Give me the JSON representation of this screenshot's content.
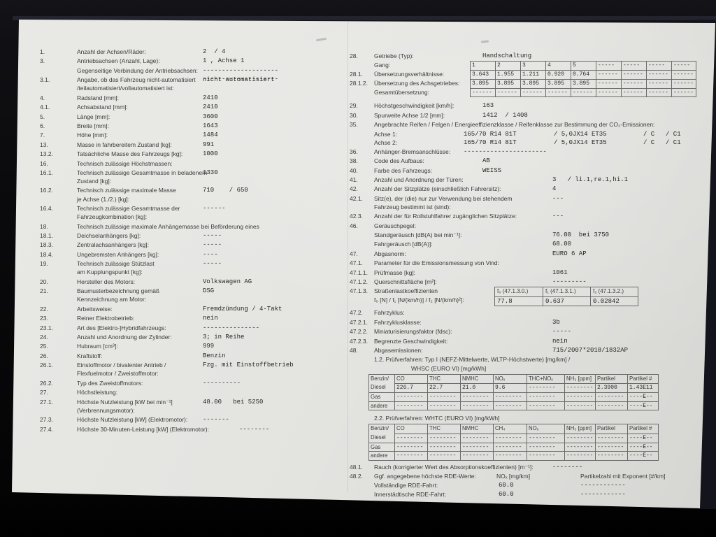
{
  "photo": {
    "background_color": "#0a0a0c",
    "paper_color": "#e4e4e1",
    "text_color": "#3a3a3a"
  },
  "doc": {
    "left_rows": [
      {
        "num": "1.",
        "label": "Anzahl der Achsen/Räder:",
        "value": "2  / 4"
      },
      {
        "num": "3.",
        "label": "Antriebsachsen (Anzahl, Lage):",
        "value": "1 , Achse 1"
      },
      {
        "num": "",
        "label": "Gegenseitige Verbindung der Antriebsachsen:",
        "value": "--------------------\n--------------------"
      },
      {
        "num": "3.1.",
        "label": "Angabe, ob das Fahrzeug nicht-automatisiert\n/teilautomatisiert/vollautomatisiert ist:",
        "value": "nicht automatisiert"
      },
      {
        "num": "4.",
        "label": "Radstand [mm]:",
        "value": "2410"
      },
      {
        "num": "4.1.",
        "label": "Achsabstand [mm]:",
        "value": "2410"
      },
      {
        "num": "5.",
        "label": "Länge [mm]:",
        "value": "3600"
      },
      {
        "num": "6.",
        "label": "Breite [mm]:",
        "value": "1643"
      },
      {
        "num": "7.",
        "label": "Höhe [mm]:",
        "value": "1484"
      },
      {
        "num": "13.",
        "label": "Masse in fahrbereitem Zustand [kg]:",
        "value": "991"
      },
      {
        "num": "13.2.",
        "label": "Tatsächliche Masse des Fahrzeugs [kg]:",
        "value": "1000"
      },
      {
        "num": "16.",
        "label": "Technisch zulässige Höchstmassen:",
        "value": ""
      },
      {
        "num": "16.1.",
        "label": "Technisch zulässige Gesamtmasse in beladenem\nZustand [kg]:",
        "value": "1330"
      },
      {
        "num": "16.2.",
        "label": "Technisch zulässige maximale Masse\nje Achse (1./2.) [kg]:",
        "value": "710    / 650"
      },
      {
        "num": "16.4.",
        "label": "Technisch zulässige Gesamtmasse der\nFahrzeugkombination [kg]:",
        "value": "------"
      },
      {
        "num": "18.",
        "label": "Technisch zulässige maximale Anhängemasse bei Beförderung eines",
        "value": "",
        "wide": true
      },
      {
        "num": "18.1.",
        "label": "Deichselanhängers [kg]:",
        "value": "-----"
      },
      {
        "num": "18.3.",
        "label": "Zentralachsanhängers [kg]:",
        "value": "-----"
      },
      {
        "num": "18.4.",
        "label": "Ungebremsten Anhängers [kg]:",
        "value": "----"
      },
      {
        "num": "19.",
        "label": "Technisch zulässige Stützlast\nam Kupplungspunkt [kg]:",
        "value": "-----"
      },
      {
        "num": "20.",
        "label": "Hersteller des Motors:",
        "value": "Volkswagen AG"
      },
      {
        "num": "21.",
        "label": "Baumusterbezeichnung gemäß\nKennzeichnung am Motor:",
        "value": "DSG"
      },
      {
        "num": "22.",
        "label": "Arbeitsweise:",
        "value": "Fremdzündung / 4-Takt"
      },
      {
        "num": "23.",
        "label": "Reiner Elektrobetrieb:",
        "value": "nein"
      },
      {
        "num": "23.1.",
        "label": "Art des [Elektro-]Hybridfahrzeugs:",
        "value": "---------------"
      },
      {
        "num": "24.",
        "label": "Anzahl und Anordnung der Zylinder:",
        "value": "3; in Reihe"
      },
      {
        "num": "25.",
        "label": "Hubraum [cm³]:",
        "value": "999"
      },
      {
        "num": "26.",
        "label": "Kraftstoff:",
        "value": "Benzin"
      },
      {
        "num": "26.1.",
        "label": "Einstoffmotor / bivalenter Antrieb /\nFlexfuelmotor / Zweistoffmotor:",
        "value": "Fzg. mit Einstoffbetrieb"
      },
      {
        "num": "26.2.",
        "label": "Typ des Zweistoffmotors:",
        "value": "----------"
      },
      {
        "num": "27.",
        "label": "Höchstleistung:",
        "value": ""
      },
      {
        "num": "27.1.",
        "label": "Höchste Nutzleistung [kW bei min⁻¹]\n(Verbrennungsmotor):",
        "value": "48.00   bei 5250"
      },
      {
        "num": "27.3.",
        "label": "Höchste Nutzleistung [kW] (Elektromotor):",
        "value": "-------"
      },
      {
        "num": "27.4.",
        "label": "Höchste 30-Minuten-Leistung [kW] (Elektromotor):",
        "value": "---·----",
        "wide": true,
        "v": 2
      }
    ],
    "right": {
      "row_28": {
        "num": "28.",
        "label": "Getriebe (Typ):",
        "value": "Handschaltung"
      },
      "gear_rows": [
        {
          "num": "",
          "label": "Gang:",
          "cells": [
            "1",
            "2",
            "3",
            "4",
            "5",
            "-----",
            "-----",
            "-----",
            "-----"
          ]
        },
        {
          "num": "28.1.",
          "label": "Übersetzungsverhältnisse:",
          "cells": [
            "3.643",
            "1.955",
            "1.211",
            "0.920",
            "0.764",
            "------",
            "------",
            "------",
            "------"
          ]
        },
        {
          "num": "28.1.2.",
          "label": "Übersetzung des Achsgetriebes:",
          "cells": [
            "3.895",
            "3.895",
            "3.895",
            "3.895",
            "3.895",
            "------",
            "------",
            "------",
            "------"
          ]
        },
        {
          "num": "",
          "label": "Gesamtübersetzung:",
          "cells": [
            "------",
            "------",
            "------",
            "------",
            "------",
            "------",
            "------",
            "------",
            "------"
          ]
        }
      ],
      "rows_speed": [
        {
          "num": "29.",
          "label": "Höchstgeschwindigkeit [km/h]:",
          "value": "163"
        },
        {
          "num": "30.",
          "label": "Spurweite Achse 1/2 [mm]:",
          "value": "1412  / 1408"
        }
      ],
      "row_35": {
        "num": "35.",
        "label": "Angebrachte Reifen / Felgen / Energieeffizienzklasse / Reifenklasse zur Bestimmung der CO₂-Emissionen:"
      },
      "tyre_rows": [
        {
          "label": "Achse 1:",
          "tire": "165/70 R14 81T",
          "rim": "/ 5,0JX14 ET35",
          "eff": "/ C",
          "cls": "/ C1"
        },
        {
          "label": "Achse 2:",
          "tire": "165/70 R14 81T",
          "rim": "/ 5,0JX14 ET35",
          "eff": "/ C",
          "cls": "/ C1"
        }
      ],
      "rows_mid": [
        {
          "num": "36.",
          "label": "Anhänger-Bremsanschlüsse:",
          "value": "----------------------",
          "v": 0
        },
        {
          "num": "38.",
          "label": "Code des Aufbaus:",
          "value": "AB"
        },
        {
          "num": "40.",
          "label": "Farbe des Fahrzeugs:",
          "value": "WEISS"
        },
        {
          "num": "41.",
          "label": "Anzahl und Anordnung der Türen:",
          "value": "3   / li.1,re.1,hi.1",
          "v": 2
        },
        {
          "num": "42.",
          "label": "Anzahl der Sitzplätze (einschließlich Fahrersitz):",
          "value": "4",
          "v": 2
        },
        {
          "num": "42.1.",
          "label": "Sitz(e), der (die) nur zur Verwendung bei stehendem\nFahrzeug bestimmt ist (sind):",
          "value": "---",
          "v": 2
        },
        {
          "num": "42.3.",
          "label": "Anzahl der für Rollstuhlfahrer zugänglichen Sitzplätze:",
          "value": "---",
          "v": 2
        },
        {
          "num": "46.",
          "label": "Geräuschpegel:",
          "value": ""
        },
        {
          "num": "",
          "label": "Standgeräusch [dB(A) bei min⁻¹]:",
          "value": "76.00  bei 3750",
          "v": 2
        },
        {
          "num": "",
          "label": "Fahrgeräusch [dB(A)]:",
          "value": "68.00",
          "v": 2
        },
        {
          "num": "47.",
          "label": "Abgasnorm:",
          "value": "EURO 6 AP",
          "v": 2
        },
        {
          "num": "47.1.",
          "label": "Parameter für die Emissionsmessung von Vind:",
          "value": ""
        },
        {
          "num": "47.1.1.",
          "label": "Prüfmasse [kg]:",
          "value": "1061",
          "v": 2
        },
        {
          "num": "47.1.2.",
          "label": "Querschnittsfläche [m²]:",
          "value": "---------",
          "v": 2
        }
      ],
      "roadload": {
        "num": "47.1.3.",
        "label": "Straßenlastkoeffizienten\nf₀ [N] / f₁ [N/(km/h)] / f₂ [N/(km/h)²]:",
        "headers": [
          "f₀ (47.1.3.0.)",
          "f₁ (47.1.3.1.)",
          "f₂ (47.1.3.2.)"
        ],
        "values": [
          "77.8",
          "0.637",
          "0.02842"
        ]
      },
      "rows_cycle": [
        {
          "num": "47.2.",
          "label": "Fahrzyklus:",
          "value": ""
        },
        {
          "num": "47.2.1.",
          "label": "Fahrzyklusklasse:",
          "value": "3b",
          "v": 2
        },
        {
          "num": "47.2.2.",
          "label": "Miniaturisierungsfaktor (fdsc):",
          "value": "-----",
          "v": 2
        },
        {
          "num": "47.2.3.",
          "label": "Begrenzte Geschwindigkeit:",
          "value": "nein",
          "v": 2
        },
        {
          "num": "48.",
          "label": "Abgasemissionen:",
          "value": "715/2007*2018/1832AP",
          "v": 2
        }
      ],
      "pruef1": {
        "line1": "1.2. Prüfverfahren: Typ I (NEFZ-Mittelwerte, WLTP-Höchstwerte) [mg/km] /",
        "line2": "WHSC (EURO VI) [mg/kWh]"
      },
      "etable1": {
        "rows": [
          {
            "hd": true,
            "label": "Benzin/",
            "cells": [
              "CO",
              "THC",
              "NMHC",
              "NOₓ",
              "THC+NOₓ",
              "NH₃ [ppm]",
              "Partikel",
              "Partikel #"
            ]
          },
          {
            "label": "Diesel",
            "cells": [
              "226.7",
              "22.7",
              "21.0",
              "9.6",
              "--------",
              "--------",
              "2.3900",
              "1.43E11"
            ]
          },
          {
            "label": "Gas",
            "cells": [
              "--------",
              "--------",
              "--------",
              "--------",
              "--------",
              "--------",
              "--------",
              "----E--"
            ]
          },
          {
            "label": "andere",
            "cells": [
              "--------",
              "--------",
              "--------",
              "--------",
              "--------",
              "--------",
              "--------",
              "----E--"
            ]
          }
        ]
      },
      "pruef2": "2.2. Prüfverfahren: WHTC (EURO VI) [mg/kWh]",
      "etable2": {
        "rows": [
          {
            "hd": true,
            "label": "Benzin/",
            "cells": [
              "CO",
              "THC",
              "NMHC",
              "CH₄",
              "NOₓ",
              "NH₃ [ppm]",
              "Partikel",
              "Partikel #"
            ]
          },
          {
            "label": "Diesel",
            "cells": [
              "--------",
              "--------",
              "--------",
              "--------",
              "--------",
              "--------",
              "--------",
              "----E--"
            ]
          },
          {
            "label": "Gas",
            "cells": [
              "--------",
              "--------",
              "--------",
              "--------",
              "--------",
              "--------",
              "--------",
              "----E--"
            ]
          },
          {
            "label": "andere",
            "cells": [
              "--------",
              "--------",
              "--------",
              "--------",
              "--------",
              "--------",
              "--------",
              "----E--"
            ]
          }
        ]
      },
      "row_48_1": {
        "num": "48.1.",
        "label": "Rauch (korrigierter Wert des Absorptionskoeffizienten) [m⁻¹]:",
        "value": "--------",
        "v": 2
      },
      "rde": {
        "num": "48.2.",
        "label": "Ggf. angegebene höchste RDE-Werte:",
        "col1": "NOₓ [mg/km]",
        "col2": "Partikelzahl mit Exponent [#/km]",
        "rows": [
          {
            "label": "Vollständige RDE-Fahrt:",
            "v1": "60.0",
            "v2": "------------"
          },
          {
            "label": "Innerstädtische RDE-Fahrt:",
            "v1": "60.0",
            "v2": "------------"
          }
        ]
      }
    }
  }
}
